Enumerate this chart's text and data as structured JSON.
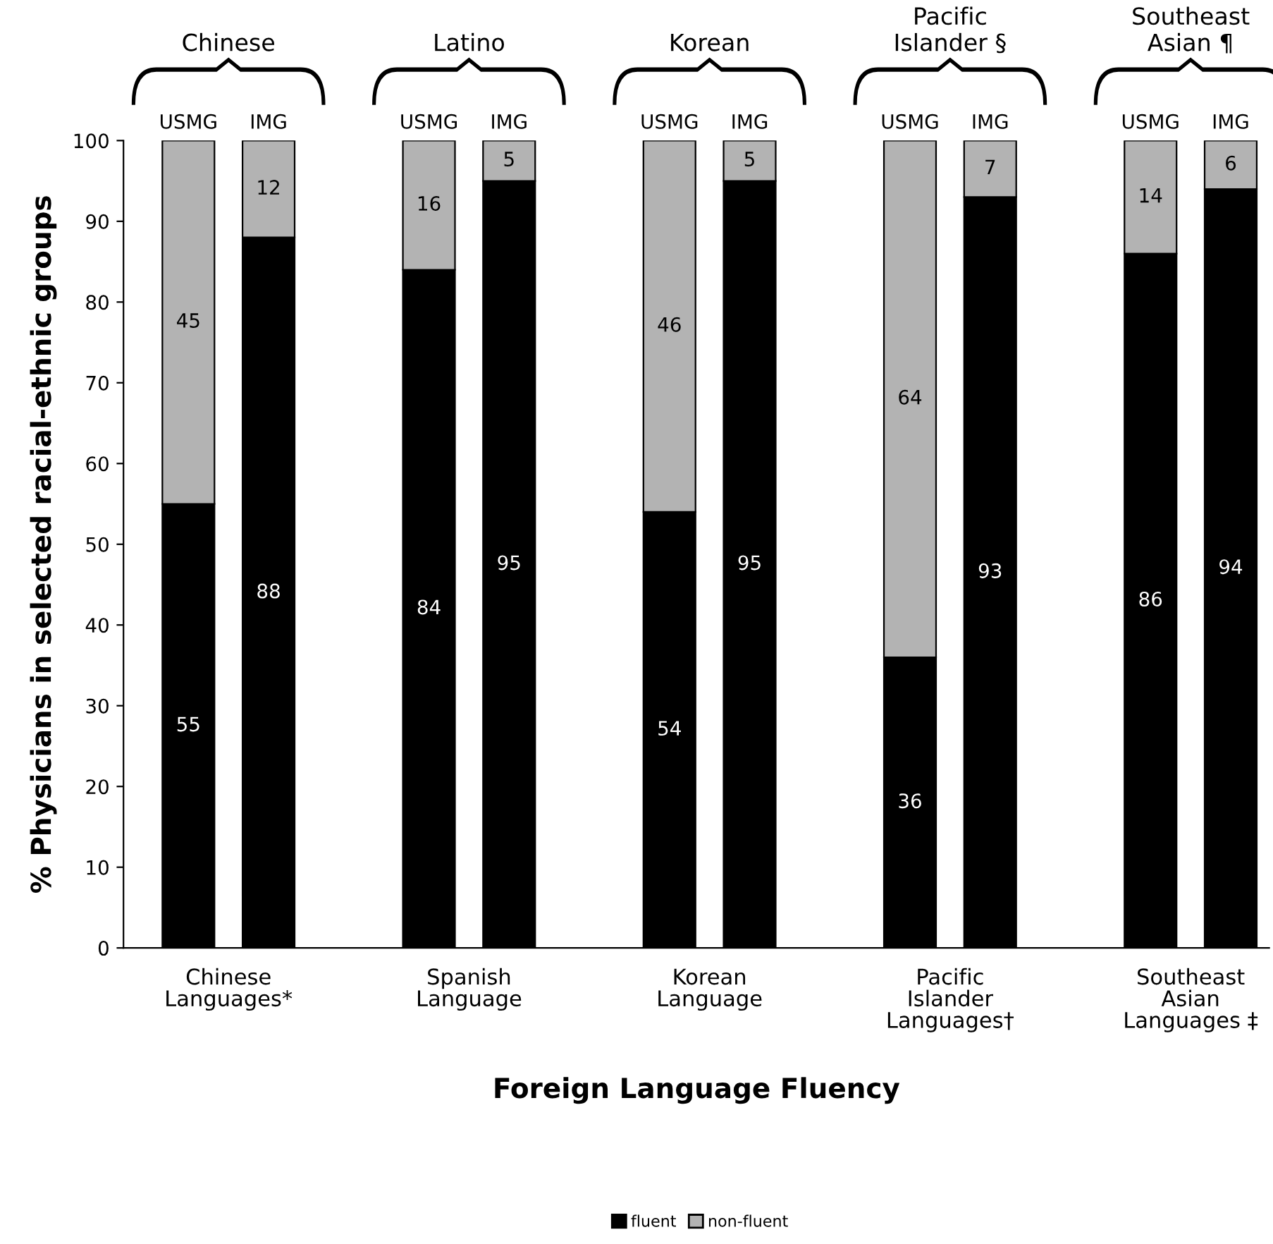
{
  "chart_data": {
    "type": "bar",
    "stacked": true,
    "categories": [
      "USMG",
      "IMG",
      null,
      "USMG",
      "IMG",
      null,
      "USMG",
      "IMG",
      null,
      "USMG",
      "IMG",
      null,
      "USMG",
      "IMG"
    ],
    "series": [
      {
        "name": "fluent",
        "color": "#000000",
        "values": [
          55,
          88,
          null,
          84,
          95,
          null,
          54,
          95,
          null,
          36,
          93,
          null,
          86,
          94
        ]
      },
      {
        "name": "non-fluent",
        "color": "#b3b3b3",
        "values": [
          45,
          12,
          null,
          16,
          5,
          null,
          46,
          5,
          null,
          64,
          7,
          null,
          14,
          6
        ]
      }
    ],
    "xlabel": "Foreign Language Fluency",
    "ylabel": "% Physicians in selected racial-ethnic groups",
    "ylim": [
      0,
      100
    ],
    "yticks": [
      0,
      10,
      20,
      30,
      40,
      50,
      60,
      70,
      80,
      90,
      100
    ],
    "annotations": [
      "Chinese",
      "Latino",
      "Korean",
      "Pacific\nIslander §",
      "Southeast\nAsian ¶",
      "Chinese\nLanguages*",
      "Spanish\nLanguage",
      "Korean\nLanguage",
      "Pacific\nIslander\nLanguages†",
      "Southeast\nAsian\nLanguages ‡"
    ],
    "data_labels": true,
    "grid": false,
    "legend": "bottom"
  }
}
